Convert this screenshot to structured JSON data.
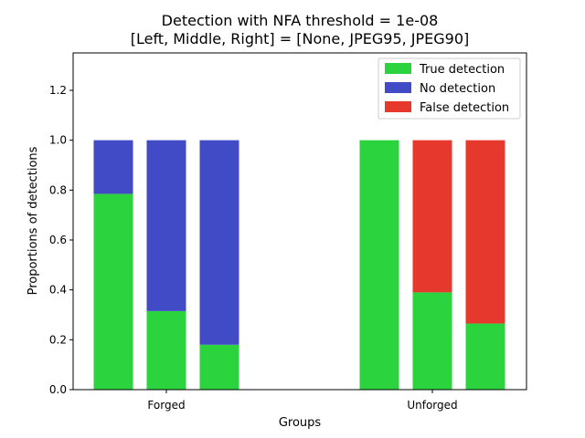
{
  "chart_data": {
    "type": "bar",
    "stacked": true,
    "title": "Detection with NFA threshold = 1e-08",
    "subtitle": "[Left, Middle, Right] = [None, JPEG95, JPEG90]",
    "xlabel": "Groups",
    "ylabel": "Proportions of detections",
    "ylim": [
      0,
      1.35
    ],
    "yticks": [
      "0.0",
      "0.2",
      "0.4",
      "0.6",
      "0.8",
      "1.0",
      "1.2"
    ],
    "categories": [
      "Forged",
      "Unforged"
    ],
    "bars_per_category": 3,
    "grid": false,
    "legend_position": "top-right",
    "series": [
      {
        "name": "True detection",
        "color": "#2bd43f",
        "values": [
          [
            0.785,
            0.315,
            0.18
          ],
          [
            1.0,
            0.39,
            0.265
          ]
        ]
      },
      {
        "name": "No detection",
        "color": "#414bc6",
        "values": [
          [
            0.215,
            0.685,
            0.82
          ],
          [
            0.0,
            0.0,
            0.0
          ]
        ]
      },
      {
        "name": "False detection",
        "color": "#e6382c",
        "values": [
          [
            0.0,
            0.0,
            0.0
          ],
          [
            0.0,
            0.61,
            0.735
          ]
        ]
      }
    ]
  }
}
